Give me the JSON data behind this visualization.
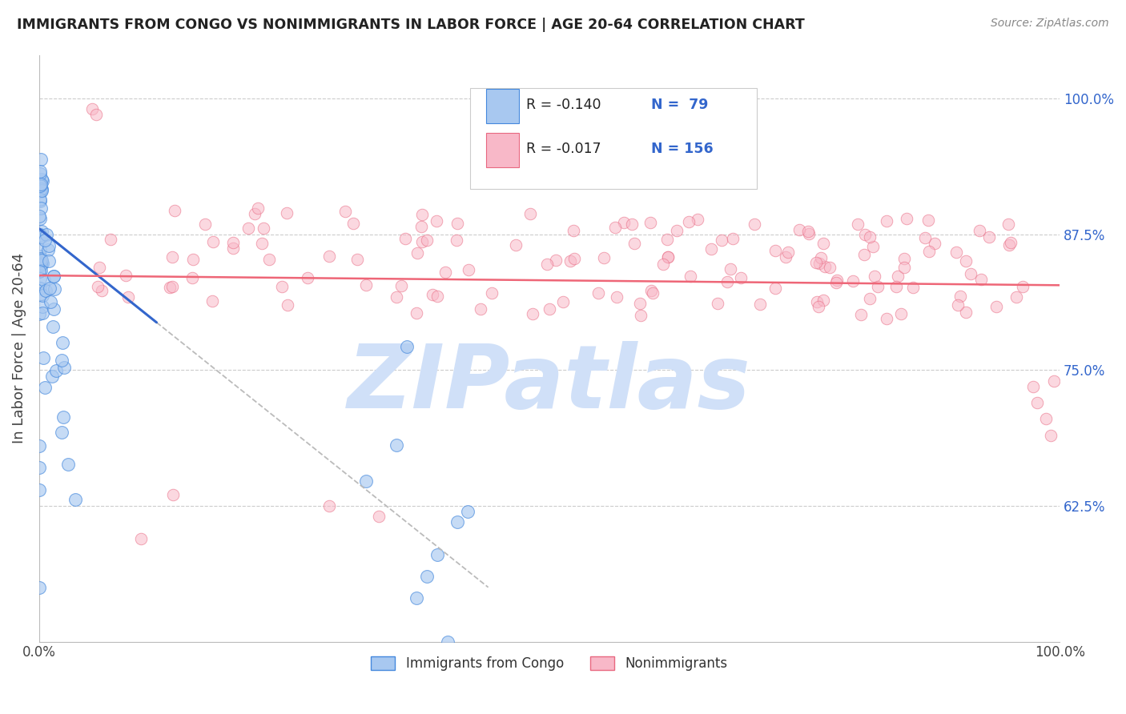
{
  "title": "IMMIGRANTS FROM CONGO VS NONIMMIGRANTS IN LABOR FORCE | AGE 20-64 CORRELATION CHART",
  "source": "Source: ZipAtlas.com",
  "ylabel": "In Labor Force | Age 20-64",
  "legend_r_blue": "-0.140",
  "legend_n_blue": "79",
  "legend_r_pink": "-0.017",
  "legend_n_pink": "156",
  "blue_face": "#A8C8F0",
  "blue_edge": "#4488DD",
  "pink_face": "#F8B8C8",
  "pink_edge": "#E86880",
  "blue_line": "#3366CC",
  "pink_line": "#EE6677",
  "gray_dash": "#BBBBBB",
  "watermark": "ZIPatlas",
  "watermark_color": "#D0E0F8",
  "right_tick_color": "#3366CC",
  "title_color": "#222222",
  "source_color": "#888888"
}
